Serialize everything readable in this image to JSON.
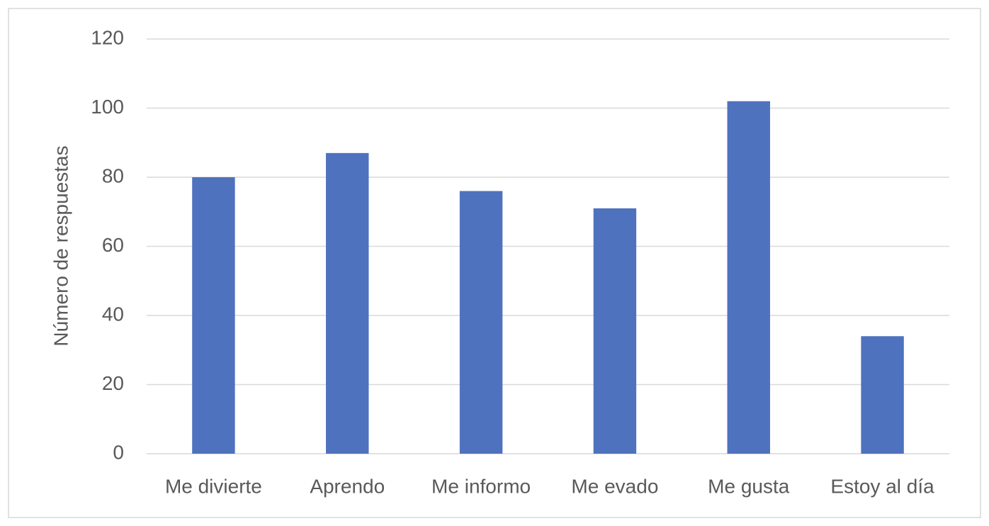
{
  "chart_data": {
    "type": "bar",
    "ylabel": "Número de respuestas",
    "categories": [
      "Me divierte",
      "Aprendo",
      "Me informo",
      "Me evado",
      "Me gusta",
      "Estoy al día"
    ],
    "values": [
      80,
      87,
      76,
      71,
      102,
      34
    ],
    "color": "#4e72be",
    "ylim": [
      0,
      120
    ],
    "yticks": [
      0,
      20,
      40,
      60,
      80,
      100,
      120
    ],
    "grid": true
  }
}
